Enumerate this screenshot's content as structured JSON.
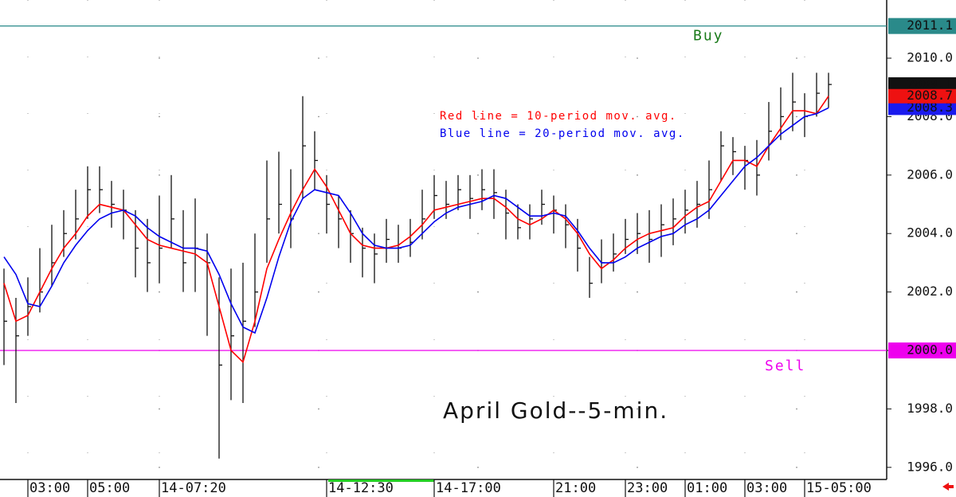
{
  "chart_data": {
    "type": "ohlc",
    "title": "April Gold--5-min.",
    "categories": [
      null,
      null,
      "03:00",
      null,
      null,
      null,
      null,
      "05:00",
      null,
      null,
      null,
      null,
      null,
      "14-07:20",
      null,
      null,
      null,
      null,
      null,
      null,
      null,
      null,
      null,
      null,
      null,
      null,
      null,
      "14-12:30",
      null,
      null,
      null,
      null,
      null,
      null,
      null,
      null,
      "14-17:00",
      null,
      null,
      null,
      null,
      null,
      null,
      null,
      null,
      null,
      "21:00",
      null,
      null,
      null,
      null,
      null,
      "23:00",
      null,
      null,
      null,
      null,
      "01:00",
      null,
      null,
      null,
      null,
      "03:00",
      null,
      null,
      null,
      null,
      "15-05:00",
      null,
      null
    ],
    "high": [
      2002.8,
      2001.8,
      2002.5,
      2003.5,
      2004.3,
      2004.8,
      2005.5,
      2006.3,
      2006.3,
      2005.8,
      2005.5,
      2004.8,
      2004.5,
      2005.3,
      2006.0,
      2004.8,
      2005.2,
      2004.0,
      2002.5,
      2002.8,
      2003.0,
      2004.0,
      2006.5,
      2006.8,
      2006.2,
      2008.7,
      2007.5,
      2006.0,
      2005.3,
      2004.8,
      2004.2,
      2004.0,
      2004.5,
      2004.3,
      2004.5,
      2005.5,
      2006.0,
      2005.8,
      2006.0,
      2006.0,
      2006.2,
      2006.2,
      2005.5,
      2005.0,
      2005.0,
      2005.5,
      2005.3,
      2005.0,
      2004.5,
      2003.2,
      2003.8,
      2004.0,
      2004.5,
      2004.7,
      2004.8,
      2005.0,
      2005.2,
      2005.5,
      2005.8,
      2006.5,
      2007.5,
      2007.3,
      2007.0,
      2007.2,
      2008.5,
      2009.0,
      2009.5,
      2008.8,
      2009.5,
      2009.5
    ],
    "low": [
      1999.5,
      1998.2,
      2000.5,
      2001.3,
      2002.2,
      2003.2,
      2003.8,
      2004.5,
      2004.7,
      2004.2,
      2003.8,
      2002.5,
      2002.0,
      2002.3,
      2003.5,
      2002.0,
      2002.0,
      2000.5,
      1996.3,
      1998.3,
      1998.2,
      2000.8,
      2003.0,
      2004.0,
      2003.5,
      2005.2,
      2005.5,
      2004.0,
      2003.5,
      2003.0,
      2002.5,
      2002.3,
      2003.0,
      2003.0,
      2003.2,
      2003.8,
      2004.5,
      2004.5,
      2004.8,
      2004.5,
      2004.8,
      2004.5,
      2003.8,
      2003.8,
      2003.8,
      2004.3,
      2004.0,
      2003.5,
      2002.7,
      2001.8,
      2002.3,
      2002.7,
      2003.3,
      2003.3,
      2003.0,
      2003.2,
      2003.6,
      2004.0,
      2004.2,
      2004.5,
      2005.8,
      2006.0,
      2005.5,
      2005.3,
      2006.5,
      2007.2,
      2007.5,
      2007.3,
      2008.0,
      2008.3
    ],
    "close": [
      2001.0,
      2000.5,
      2001.5,
      2002.0,
      2003.0,
      2004.0,
      2004.5,
      2005.5,
      2005.5,
      2005.0,
      2004.8,
      2003.5,
      2003.0,
      2003.5,
      2004.5,
      2003.0,
      2003.5,
      2003.0,
      1999.5,
      2000.5,
      2001.0,
      2002.0,
      2004.5,
      2005.0,
      2004.5,
      2007.0,
      2006.5,
      2005.0,
      2004.5,
      2004.0,
      2003.5,
      2003.3,
      2003.8,
      2003.5,
      2003.7,
      2004.5,
      2005.3,
      2005.0,
      2005.5,
      2005.2,
      2005.5,
      2005.4,
      2004.7,
      2004.2,
      2004.5,
      2005.0,
      2004.8,
      2004.3,
      2003.5,
      2002.3,
      2003.0,
      2003.3,
      2003.8,
      2004.0,
      2003.8,
      2004.3,
      2004.5,
      2004.8,
      2005.0,
      2005.5,
      2007.0,
      2006.8,
      2006.5,
      2006.0,
      2007.5,
      2008.0,
      2008.5,
      2008.0,
      2008.8,
      2009.1
    ],
    "bar_color": "#111111",
    "series": [
      {
        "name": "Red line = 10-period mov. avg.",
        "color": "#ff0000",
        "values": [
          2002.3,
          2001.0,
          2001.2,
          2002.0,
          2002.8,
          2003.5,
          2004.0,
          2004.6,
          2005.0,
          2004.9,
          2004.8,
          2004.3,
          2003.8,
          2003.6,
          2003.5,
          2003.4,
          2003.3,
          2003.0,
          2001.5,
          2000.0,
          1999.6,
          2001.0,
          2002.8,
          2003.8,
          2004.7,
          2005.5,
          2006.2,
          2005.6,
          2004.8,
          2004.0,
          2003.6,
          2003.5,
          2003.5,
          2003.6,
          2003.9,
          2004.3,
          2004.8,
          2004.9,
          2005.0,
          2005.1,
          2005.2,
          2005.2,
          2004.9,
          2004.5,
          2004.3,
          2004.5,
          2004.8,
          2004.5,
          2004.0,
          2003.3,
          2002.8,
          2003.1,
          2003.5,
          2003.8,
          2004.0,
          2004.1,
          2004.2,
          2004.6,
          2004.9,
          2005.1,
          2005.8,
          2006.5,
          2006.5,
          2006.3,
          2007.0,
          2007.6,
          2008.2,
          2008.2,
          2008.1,
          2008.7
        ]
      },
      {
        "name": "Blue line = 20-period mov. avg.",
        "color": "#0000ee",
        "values": [
          2003.2,
          2002.6,
          2001.6,
          2001.5,
          2002.2,
          2003.0,
          2003.6,
          2004.1,
          2004.5,
          2004.7,
          2004.8,
          2004.6,
          2004.2,
          2003.9,
          2003.7,
          2003.5,
          2003.5,
          2003.4,
          2002.6,
          2001.6,
          2000.8,
          2000.6,
          2001.8,
          2003.2,
          2004.4,
          2005.2,
          2005.5,
          2005.4,
          2005.3,
          2004.7,
          2004.0,
          2003.6,
          2003.5,
          2003.5,
          2003.6,
          2004.0,
          2004.4,
          2004.7,
          2004.9,
          2005.0,
          2005.1,
          2005.3,
          2005.2,
          2004.9,
          2004.6,
          2004.6,
          2004.7,
          2004.6,
          2004.1,
          2003.5,
          2003.0,
          2003.0,
          2003.2,
          2003.5,
          2003.7,
          2003.9,
          2004.0,
          2004.3,
          2004.5,
          2004.8,
          2005.3,
          2005.8,
          2006.3,
          2006.6,
          2007.0,
          2007.4,
          2007.7,
          2008.0,
          2008.1,
          2008.3
        ]
      }
    ],
    "levels": [
      {
        "name": "Buy",
        "value": 2011.1,
        "label": "2011.1",
        "color": "#2a8a8a",
        "text_color": "#1a7a1a"
      },
      {
        "name": "Sell",
        "value": 2000.0,
        "label": "2000.0",
        "color": "#ee00ee",
        "text_color": "#ee00ee"
      }
    ],
    "price_tags": [
      {
        "value": 2009.1,
        "label": "2009.1",
        "color": "#111111"
      },
      {
        "value": 2008.3,
        "label": "2008.3",
        "color": "#1a1aee"
      },
      {
        "value": 2008.7,
        "label": "2008.7",
        "color": "#ee1111"
      }
    ],
    "ylim": [
      1995.64,
      2011.99
    ],
    "yticks": [
      {
        "value": 1996,
        "label": "1996.0"
      },
      {
        "value": 1998,
        "label": "1998.0"
      },
      {
        "value": 2000,
        "label": "2000.0"
      },
      {
        "value": 2002,
        "label": "2002.0"
      },
      {
        "value": 2004,
        "label": "2004.0"
      },
      {
        "value": 2006,
        "label": "2006.0"
      },
      {
        "value": 2008,
        "label": "2008.0"
      },
      {
        "value": 2010,
        "label": "2010.0"
      }
    ]
  }
}
